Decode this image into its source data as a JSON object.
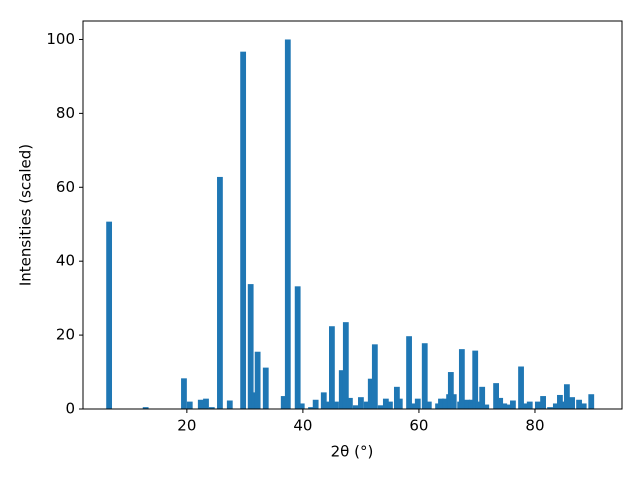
{
  "chart_data": {
    "type": "bar",
    "x_label": "2θ (°)",
    "y_label": "Intensities (scaled)",
    "color": "#1f77b4",
    "x": [
      6.6,
      12.9,
      19.5,
      20.5,
      22.4,
      23.3,
      24.3,
      25.7,
      27.4,
      29.7,
      31.0,
      31.7,
      32.2,
      33.6,
      36.7,
      37.4,
      39.1,
      39.8,
      41.4,
      42.2,
      43.6,
      44.1,
      45.0,
      45.7,
      46.7,
      47.4,
      48.1,
      49.1,
      50.0,
      51.0,
      51.7,
      52.4,
      53.4,
      54.3,
      55.0,
      56.2,
      56.7,
      58.3,
      59.0,
      59.8,
      61.0,
      61.7,
      63.3,
      63.8,
      64.5,
      65.2,
      65.5,
      66.0,
      67.1,
      67.4,
      68.3,
      69.1,
      69.7,
      70.3,
      70.9,
      71.6,
      73.3,
      74.0,
      74.7,
      75.3,
      76.2,
      77.6,
      78.4,
      79.1,
      80.5,
      81.4,
      82.6,
      83.6,
      84.3,
      84.8,
      85.5,
      86.4,
      87.6,
      88.4,
      89.7
    ],
    "values": [
      50.7,
      0.5,
      8.3,
      2,
      2.5,
      2.8,
      0.5,
      62.8,
      2.3,
      96.7,
      33.8,
      4.5,
      15.5,
      11.2,
      3.5,
      100,
      33.2,
      1.5,
      0.5,
      2.5,
      4.5,
      2,
      22.4,
      2,
      10.5,
      23.5,
      3,
      1,
      3.2,
      2,
      8.2,
      17.5,
      1,
      2.8,
      2,
      6,
      2.8,
      19.7,
      1.5,
      2.8,
      17.8,
      2,
      1.5,
      2.8,
      2.8,
      4,
      10,
      4,
      2,
      16.2,
      2.5,
      2.5,
      15.8,
      2,
      6,
      1.2,
      7,
      3,
      1.5,
      1.2,
      2.3,
      11.5,
      1.5,
      2,
      2,
      3.5,
      0.5,
      1.5,
      3.8,
      2,
      6.7,
      3.2,
      2.5,
      1.5,
      4
    ],
    "xlim": [
      2.1,
      95
    ],
    "ylim": [
      0,
      105
    ],
    "xticks": [
      20,
      40,
      60,
      80
    ],
    "yticks": [
      0,
      20,
      40,
      60,
      80,
      100
    ],
    "grid": false
  }
}
